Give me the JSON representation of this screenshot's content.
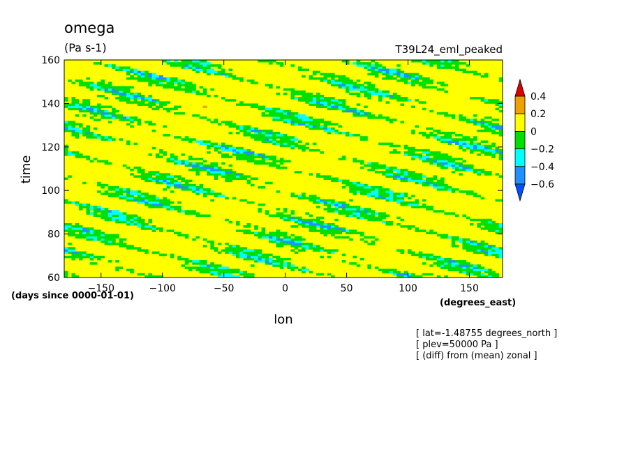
{
  "chart_data": {
    "type": "heatmap",
    "title": "omega",
    "units": "(Pa s-1)",
    "run_label": "T39L24_eml_peaked",
    "xlabel": "lon",
    "x_units": "(degrees_east)",
    "ylabel": "time",
    "y_units": "(days since 0000-01-01)",
    "xlim": [
      -180,
      177
    ],
    "ylim": [
      60,
      160
    ],
    "x_ticks": [
      -150,
      -100,
      -50,
      0,
      50,
      100,
      150
    ],
    "y_ticks": [
      60,
      80,
      100,
      120,
      140,
      160
    ],
    "colorbar": {
      "levels": [
        "0.4",
        "0.2",
        "0",
        "-0.2",
        "-0.4",
        "-0.6"
      ],
      "colors": [
        "#e00000",
        "#f0a000",
        "#ffff00",
        "#00e000",
        "#00ffff",
        "#1e90ff",
        "#0050ff"
      ],
      "extend": "both"
    },
    "footnotes": [
      "[ lat=-1.48755 degrees_north ]",
      "[ plev=50000 Pa ]",
      "[ (diff) from (mean) zonal ]"
    ]
  }
}
